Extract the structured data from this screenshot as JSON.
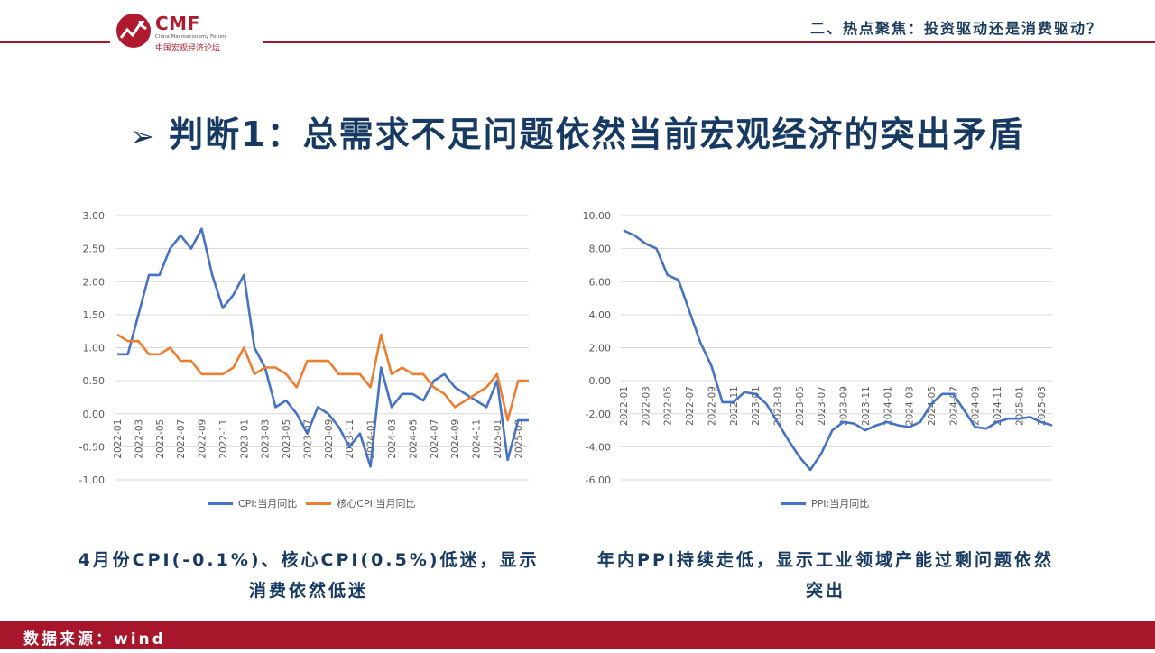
{
  "header": {
    "logo_brand": "CMF",
    "logo_subtitle": "China Macroeconomy Forum",
    "logo_cn": "中国宏观经济论坛",
    "section_title": "二、热点聚焦：投资驱动还是消费驱动？"
  },
  "main_title": {
    "arrow": "➢",
    "text": "判断1：总需求不足问题依然当前宏观经济的突出矛盾"
  },
  "captions": {
    "left": "4月份CPI(-0.1%)、核心CPI(0.5%)低迷，显示消费依然低迷",
    "right": "年内PPI持续走低，显示工业领域产能过剩问题依然突出"
  },
  "footer": {
    "source": "数据来源：wind"
  },
  "colors": {
    "accent": "#a8162c",
    "navy": "#173a63",
    "blue": "#4472c4",
    "orange": "#ed7d31",
    "grid": "#d9d9d9",
    "axis_text": "#595959"
  },
  "chart_data": [
    {
      "type": "line",
      "x": [
        "2022-01",
        "2022-02",
        "2022-03",
        "2022-04",
        "2022-05",
        "2022-06",
        "2022-07",
        "2022-08",
        "2022-09",
        "2022-10",
        "2022-11",
        "2022-12",
        "2023-01",
        "2023-02",
        "2023-03",
        "2023-04",
        "2023-05",
        "2023-06",
        "2023-07",
        "2023-08",
        "2023-09",
        "2023-10",
        "2023-11",
        "2023-12",
        "2024-01",
        "2024-02",
        "2024-03",
        "2024-04",
        "2024-05",
        "2024-06",
        "2024-07",
        "2024-08",
        "2024-09",
        "2024-10",
        "2024-11",
        "2024-12",
        "2025-01",
        "2025-02",
        "2025-03",
        "2025-04"
      ],
      "x_tick_labels": [
        "2022-01",
        "2022-03",
        "2022-05",
        "2022-07",
        "2022-09",
        "2022-11",
        "2023-01",
        "2023-03",
        "2023-05",
        "2023-07",
        "2023-09",
        "2023-11",
        "2024-01",
        "2024-03",
        "2024-05",
        "2024-07",
        "2024-09",
        "2024-11",
        "2025-01",
        "2025-03"
      ],
      "y_tick_labels": [
        "3.00",
        "2.50",
        "2.00",
        "1.50",
        "1.00",
        "0.50",
        "0.00",
        "-0.50",
        "-1.00"
      ],
      "ylim": [
        -1.0,
        3.0
      ],
      "grid": true,
      "legend_position": "bottom",
      "series": [
        {
          "name": "CPI:当月同比",
          "color": "#4472c4",
          "values": [
            0.9,
            0.9,
            1.5,
            2.1,
            2.1,
            2.5,
            2.7,
            2.5,
            2.8,
            2.1,
            1.6,
            1.8,
            2.1,
            1.0,
            0.7,
            0.1,
            0.2,
            0.0,
            -0.3,
            0.1,
            0.0,
            -0.2,
            -0.5,
            -0.3,
            -0.8,
            0.7,
            0.1,
            0.3,
            0.3,
            0.2,
            0.5,
            0.6,
            0.4,
            0.3,
            0.2,
            0.1,
            0.5,
            -0.7,
            -0.1,
            -0.1
          ]
        },
        {
          "name": "核心CPI:当月同比",
          "color": "#ed7d31",
          "values": [
            1.2,
            1.1,
            1.1,
            0.9,
            0.9,
            1.0,
            0.8,
            0.8,
            0.6,
            0.6,
            0.6,
            0.7,
            1.0,
            0.6,
            0.7,
            0.7,
            0.6,
            0.4,
            0.8,
            0.8,
            0.8,
            0.6,
            0.6,
            0.6,
            0.4,
            1.2,
            0.6,
            0.7,
            0.6,
            0.6,
            0.4,
            0.3,
            0.1,
            0.2,
            0.3,
            0.4,
            0.6,
            -0.1,
            0.5,
            0.5
          ]
        }
      ]
    },
    {
      "type": "line",
      "x": [
        "2022-01",
        "2022-02",
        "2022-03",
        "2022-04",
        "2022-05",
        "2022-06",
        "2022-07",
        "2022-08",
        "2022-09",
        "2022-10",
        "2022-11",
        "2022-12",
        "2023-01",
        "2023-02",
        "2023-03",
        "2023-04",
        "2023-05",
        "2023-06",
        "2023-07",
        "2023-08",
        "2023-09",
        "2023-10",
        "2023-11",
        "2023-12",
        "2024-01",
        "2024-02",
        "2024-03",
        "2024-04",
        "2024-05",
        "2024-06",
        "2024-07",
        "2024-08",
        "2024-09",
        "2024-10",
        "2024-11",
        "2024-12",
        "2025-01",
        "2025-02",
        "2025-03",
        "2025-04"
      ],
      "x_tick_labels": [
        "2022-01",
        "2022-03",
        "2022-05",
        "2022-07",
        "2022-09",
        "2022-11",
        "2023-01",
        "2023-03",
        "2023-05",
        "2023-07",
        "2023-09",
        "2023-11",
        "2024-01",
        "2024-03",
        "2024-05",
        "2024-07",
        "2024-09",
        "2024-11",
        "2025-01",
        "2025-03"
      ],
      "y_tick_labels": [
        "10.00",
        "8.00",
        "6.00",
        "4.00",
        "2.00",
        "0.00",
        "-2.00",
        "-4.00",
        "-6.00"
      ],
      "ylim": [
        -6.0,
        10.0
      ],
      "grid": true,
      "legend_position": "bottom",
      "series": [
        {
          "name": "PPI:当月同比",
          "color": "#4472c4",
          "values": [
            9.1,
            8.8,
            8.3,
            8.0,
            6.4,
            6.1,
            4.2,
            2.3,
            0.9,
            -1.3,
            -1.3,
            -0.7,
            -0.8,
            -1.4,
            -2.5,
            -3.6,
            -4.6,
            -5.4,
            -4.4,
            -3.0,
            -2.5,
            -2.6,
            -3.0,
            -2.7,
            -2.5,
            -2.7,
            -2.8,
            -2.5,
            -1.4,
            -0.8,
            -0.8,
            -1.8,
            -2.8,
            -2.9,
            -2.5,
            -2.3,
            -2.3,
            -2.2,
            -2.5,
            -2.7
          ]
        }
      ]
    }
  ]
}
